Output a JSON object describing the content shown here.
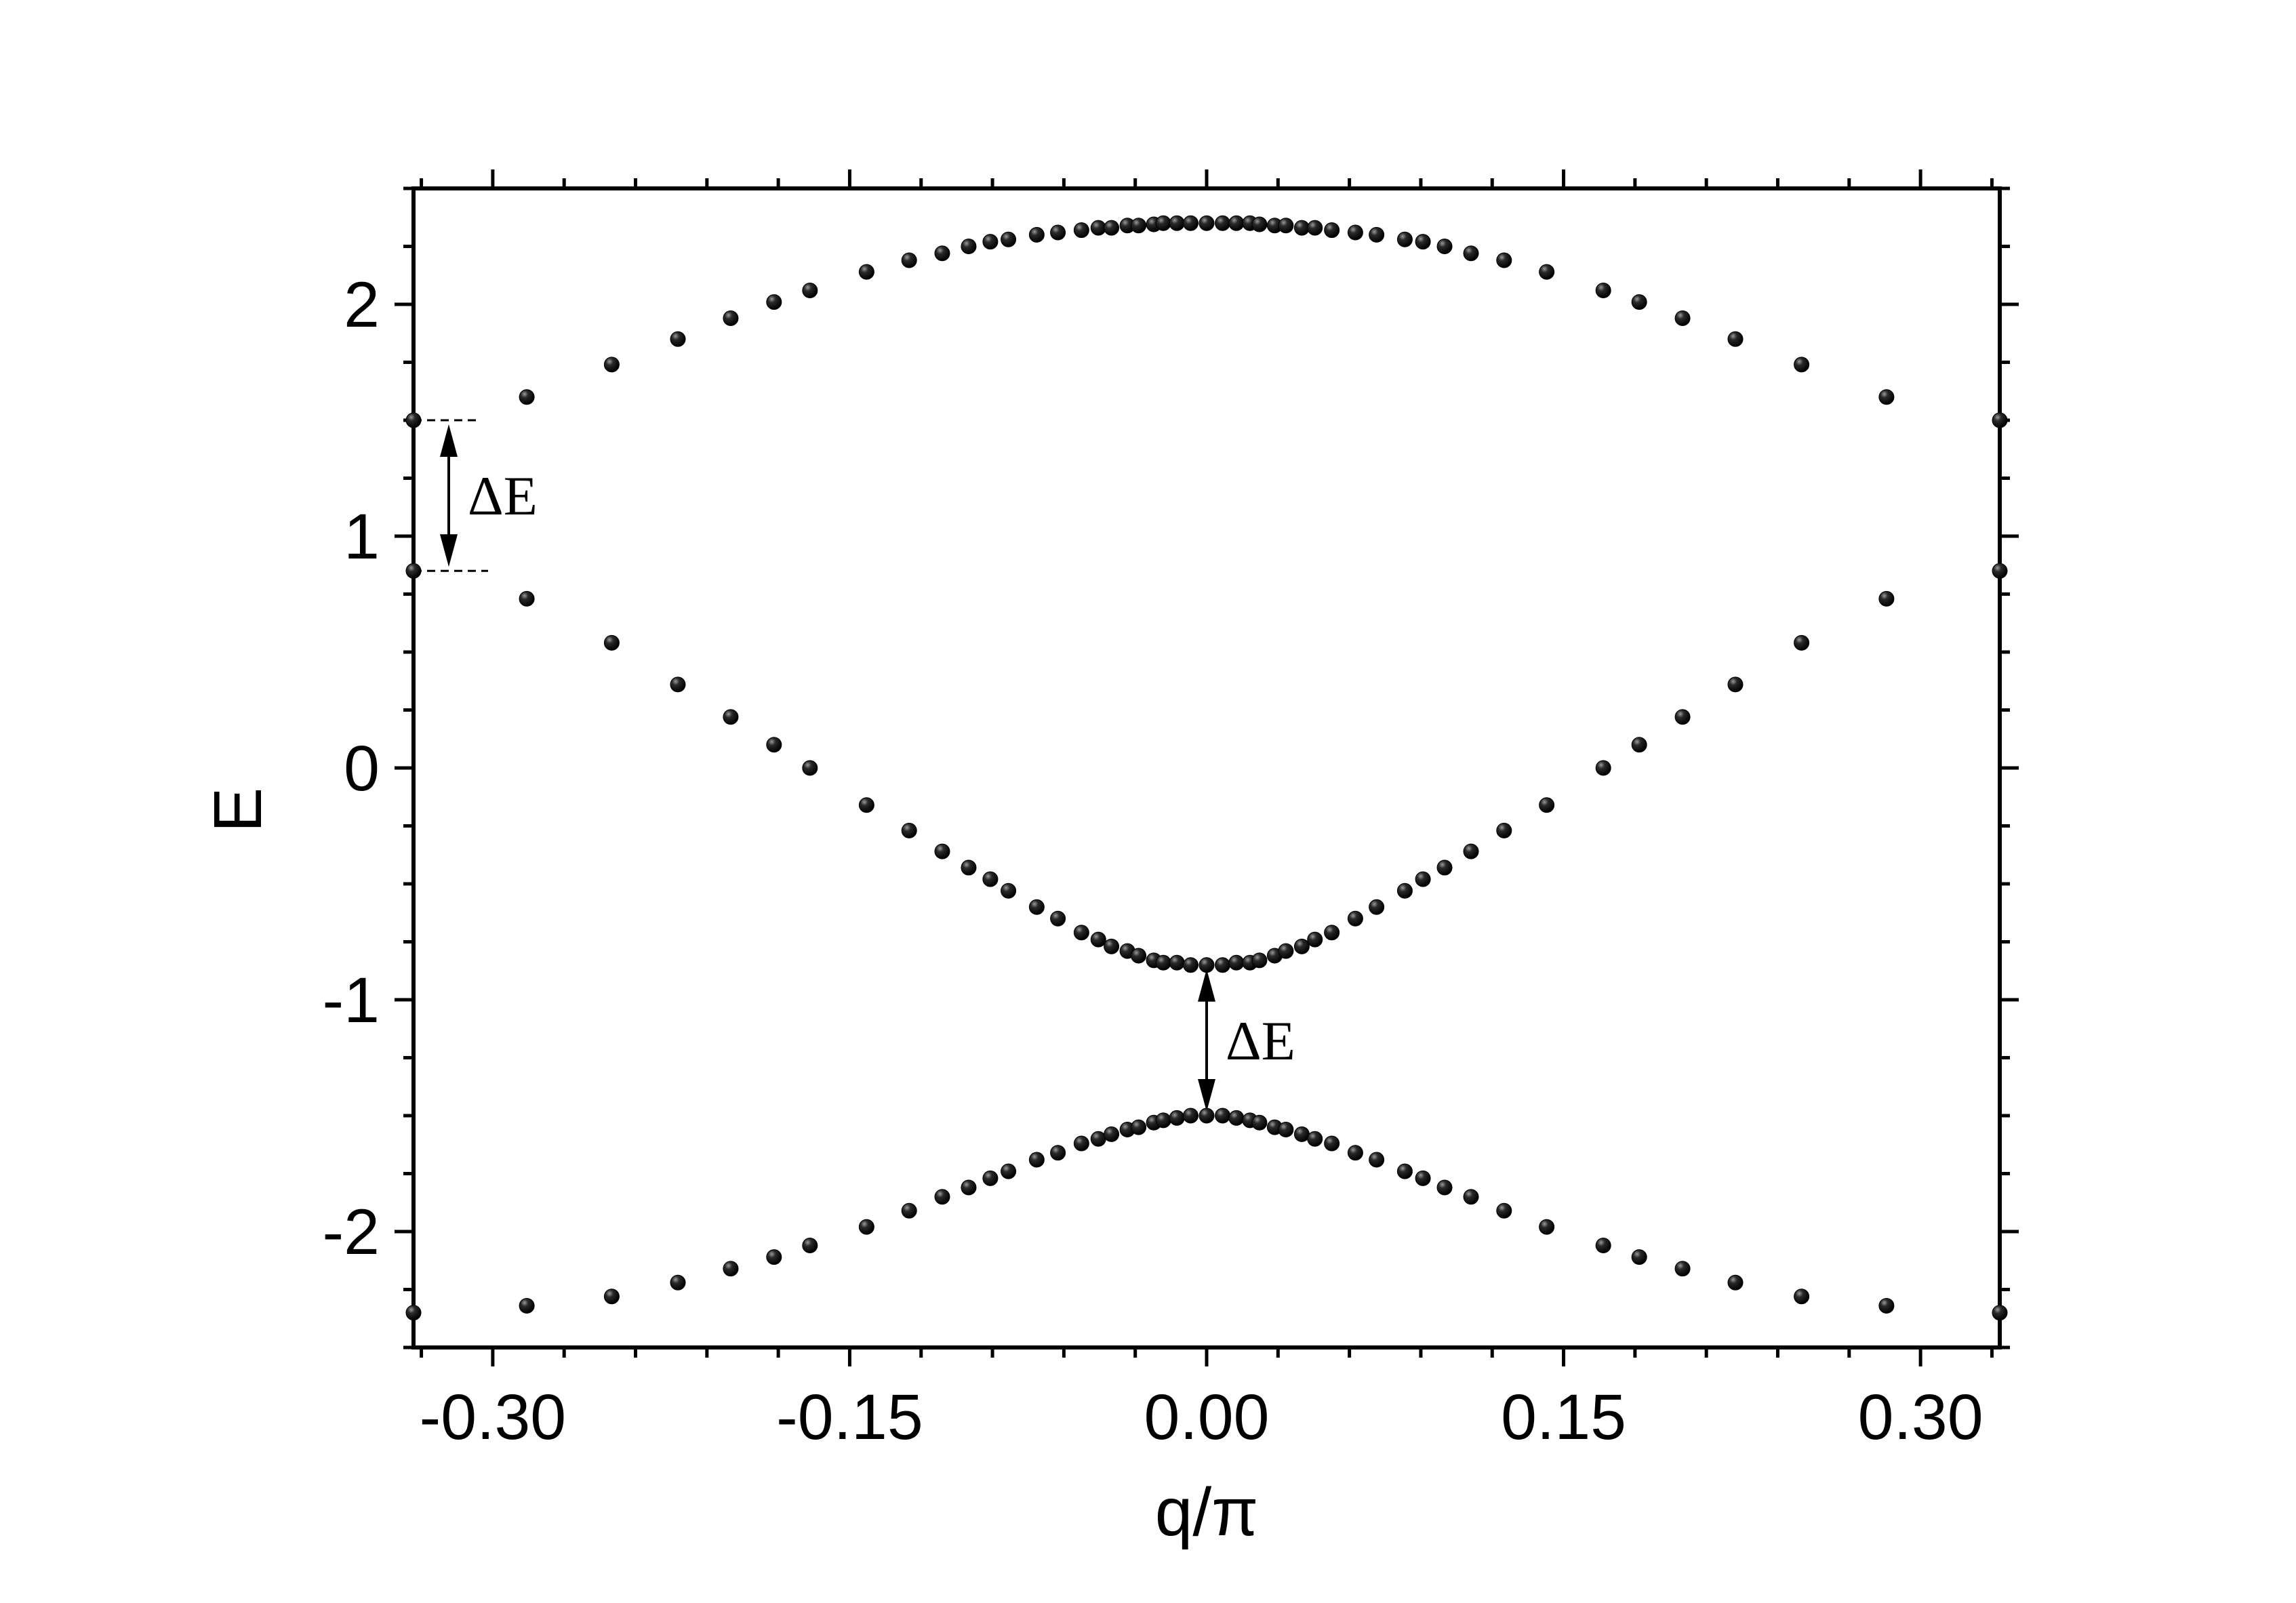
{
  "chart_data": {
    "type": "scatter",
    "title": "",
    "xlabel": "q/π",
    "ylabel": "E",
    "xlim": [
      -0.3333,
      0.3333
    ],
    "ylim": [
      -2.5,
      2.5
    ],
    "xticks": [
      -0.3,
      -0.15,
      0.0,
      0.15,
      0.3
    ],
    "xtick_labels": [
      "-0.30",
      "-0.15",
      "0.00",
      "0.15",
      "0.30"
    ],
    "yticks": [
      2,
      1,
      0,
      -1,
      -2
    ],
    "ytick_labels": [
      "2",
      "1",
      "0",
      "-1",
      "-2"
    ],
    "grid": false,
    "marker_color": "#000000",
    "x": [
      -0.3333,
      -0.2857,
      -0.25,
      -0.2222,
      -0.2,
      -0.1818,
      -0.1667,
      -0.1429,
      -0.125,
      -0.1111,
      -0.1,
      -0.0909,
      -0.0833,
      -0.0714,
      -0.0625,
      -0.0526,
      -0.0455,
      -0.04,
      -0.0333,
      -0.0286,
      -0.0222,
      -0.0182,
      -0.0125,
      -0.0067,
      0.0,
      0.0067,
      0.0125,
      0.0182,
      0.0222,
      0.0286,
      0.0333,
      0.04,
      0.0455,
      0.0526,
      0.0625,
      0.0714,
      0.0833,
      0.0909,
      0.1,
      0.1111,
      0.125,
      0.1429,
      0.1667,
      0.1818,
      0.2,
      0.2222,
      0.25,
      0.2857,
      0.3333
    ],
    "series": [
      {
        "values": [
          1.5,
          1.6,
          1.74,
          1.85,
          1.94,
          2.01,
          2.06,
          2.14,
          2.19,
          2.22,
          2.25,
          2.27,
          2.28,
          2.3,
          2.31,
          2.32,
          2.33,
          2.33,
          2.34,
          2.34,
          2.345,
          2.35,
          2.35,
          2.35,
          2.35,
          2.35,
          2.35,
          2.35,
          2.345,
          2.34,
          2.34,
          2.33,
          2.33,
          2.32,
          2.31,
          2.3,
          2.28,
          2.27,
          2.25,
          2.22,
          2.19,
          2.14,
          2.06,
          2.01,
          1.94,
          1.85,
          1.74,
          1.6,
          1.5
        ]
      },
      {
        "values": [
          0.85,
          0.73,
          0.54,
          0.36,
          0.22,
          0.1,
          0.0,
          -0.16,
          -0.27,
          -0.36,
          -0.43,
          -0.48,
          -0.53,
          -0.6,
          -0.65,
          -0.71,
          -0.74,
          -0.77,
          -0.79,
          -0.81,
          -0.83,
          -0.84,
          -0.84,
          -0.85,
          -0.85,
          -0.85,
          -0.84,
          -0.84,
          -0.83,
          -0.81,
          -0.79,
          -0.77,
          -0.74,
          -0.71,
          -0.65,
          -0.6,
          -0.53,
          -0.48,
          -0.43,
          -0.36,
          -0.27,
          -0.16,
          0.0,
          0.1,
          0.22,
          0.36,
          0.54,
          0.73,
          0.85
        ]
      },
      {
        "values": [
          -2.35,
          -2.32,
          -2.28,
          -2.22,
          -2.16,
          -2.11,
          -2.06,
          -1.98,
          -1.91,
          -1.85,
          -1.81,
          -1.77,
          -1.74,
          -1.69,
          -1.66,
          -1.62,
          -1.6,
          -1.58,
          -1.56,
          -1.55,
          -1.53,
          -1.52,
          -1.51,
          -1.5,
          -1.5,
          -1.5,
          -1.51,
          -1.52,
          -1.53,
          -1.55,
          -1.56,
          -1.58,
          -1.6,
          -1.62,
          -1.66,
          -1.69,
          -1.74,
          -1.77,
          -1.81,
          -1.85,
          -1.91,
          -1.98,
          -2.06,
          -2.11,
          -2.16,
          -2.22,
          -2.28,
          -2.32,
          -2.35
        ]
      }
    ],
    "annotations": [
      {
        "text": "ΔE",
        "x_at": -0.3333,
        "from": 1.5,
        "to": 0.85
      },
      {
        "text": "ΔE",
        "x_at": 0.0,
        "from": -0.85,
        "to": -1.5
      }
    ]
  }
}
